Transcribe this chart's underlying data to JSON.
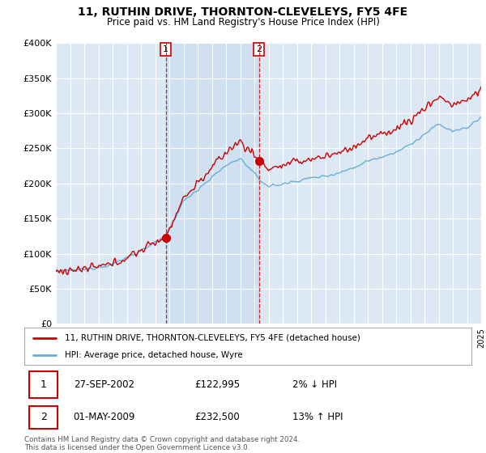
{
  "title": "11, RUTHIN DRIVE, THORNTON-CLEVELEYS, FY5 4FE",
  "subtitle": "Price paid vs. HM Land Registry's House Price Index (HPI)",
  "legend_label_red": "11, RUTHIN DRIVE, THORNTON-CLEVELEYS, FY5 4FE (detached house)",
  "legend_label_blue": "HPI: Average price, detached house, Wyre",
  "sale1_date": "27-SEP-2002",
  "sale1_price": "£122,995",
  "sale1_hpi": "2% ↓ HPI",
  "sale2_date": "01-MAY-2009",
  "sale2_price": "£232,500",
  "sale2_hpi": "13% ↑ HPI",
  "footer": "Contains HM Land Registry data © Crown copyright and database right 2024.\nThis data is licensed under the Open Government Licence v3.0.",
  "ylim": [
    0,
    400000
  ],
  "yticks": [
    0,
    50000,
    100000,
    150000,
    200000,
    250000,
    300000,
    350000,
    400000
  ],
  "ytick_labels": [
    "£0",
    "£50K",
    "£100K",
    "£150K",
    "£200K",
    "£250K",
    "£300K",
    "£350K",
    "£400K"
  ],
  "color_red": "#cc0000",
  "color_blue": "#6aaed6",
  "color_bg": "#dce9f5",
  "color_shade": "#c8ddf0",
  "sale1_year": 2002.75,
  "sale2_year": 2009.33,
  "sale1_price_val": 122995,
  "sale2_price_val": 232500,
  "start_year": 1995,
  "end_year": 2025
}
